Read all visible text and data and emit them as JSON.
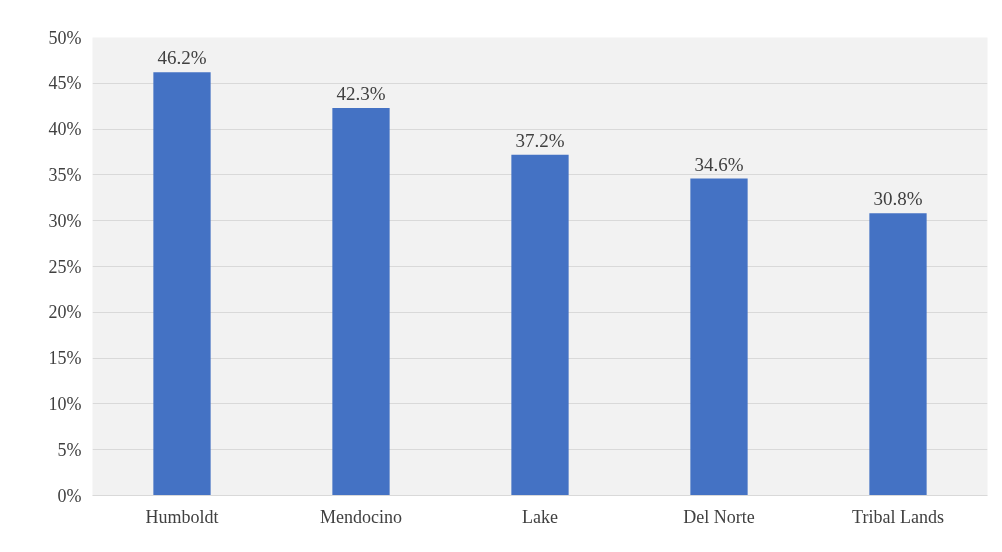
{
  "chart_data": {
    "type": "bar",
    "categories": [
      "Humboldt",
      "Mendocino",
      "Lake",
      "Del Norte",
      "Tribal Lands"
    ],
    "values": [
      46.2,
      42.3,
      37.2,
      34.6,
      30.8
    ],
    "value_labels": [
      "46.2%",
      "42.3%",
      "37.2%",
      "34.6%",
      "30.8%"
    ],
    "color": "#4472c4",
    "ylim": [
      0,
      50
    ],
    "yticks": [
      {
        "value": 0,
        "label": "0%"
      },
      {
        "value": 5,
        "label": "5%"
      },
      {
        "value": 10,
        "label": "10%"
      },
      {
        "value": 15,
        "label": "15%"
      },
      {
        "value": 20,
        "label": "20%"
      },
      {
        "value": 25,
        "label": "25%"
      },
      {
        "value": 30,
        "label": "30%"
      },
      {
        "value": 35,
        "label": "35%"
      },
      {
        "value": 40,
        "label": "40%"
      },
      {
        "value": 45,
        "label": "45%"
      },
      {
        "value": 50,
        "label": "50%"
      }
    ],
    "grid": "y"
  }
}
